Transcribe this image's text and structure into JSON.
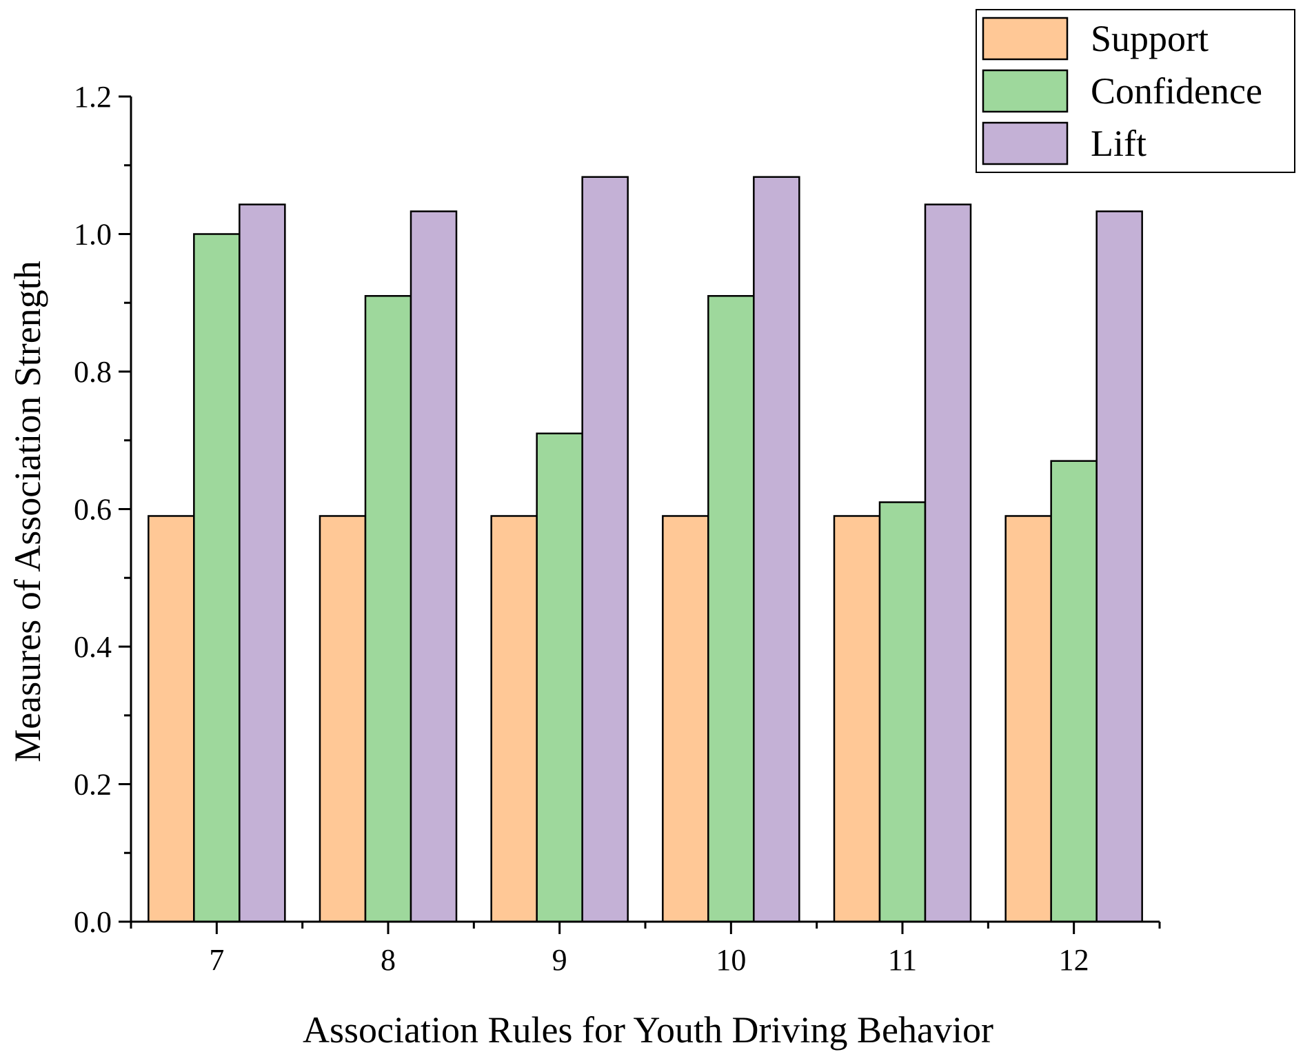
{
  "chart_data": {
    "type": "bar",
    "title": "",
    "xlabel": "Association Rules for Youth Driving Behavior",
    "ylabel": "Measures of Association Strength",
    "categories": [
      "7",
      "8",
      "9",
      "10",
      "11",
      "12"
    ],
    "series": [
      {
        "name": "Support",
        "color": "#FFC896",
        "values": [
          0.59,
          0.59,
          0.59,
          0.59,
          0.59,
          0.59
        ]
      },
      {
        "name": "Confidence",
        "color": "#9ED89C",
        "values": [
          1.0,
          0.91,
          0.71,
          0.91,
          0.61,
          0.67
        ]
      },
      {
        "name": "Lift",
        "color": "#C4B1D6",
        "values": [
          1.043,
          1.033,
          1.083,
          1.083,
          1.043,
          1.033
        ]
      }
    ],
    "ylim": [
      0,
      1.2
    ],
    "yticks": [
      "0.0",
      "0.2",
      "0.4",
      "0.6",
      "0.8",
      "1.0",
      "1.2"
    ],
    "grid": false,
    "legend_position": "top-right"
  }
}
